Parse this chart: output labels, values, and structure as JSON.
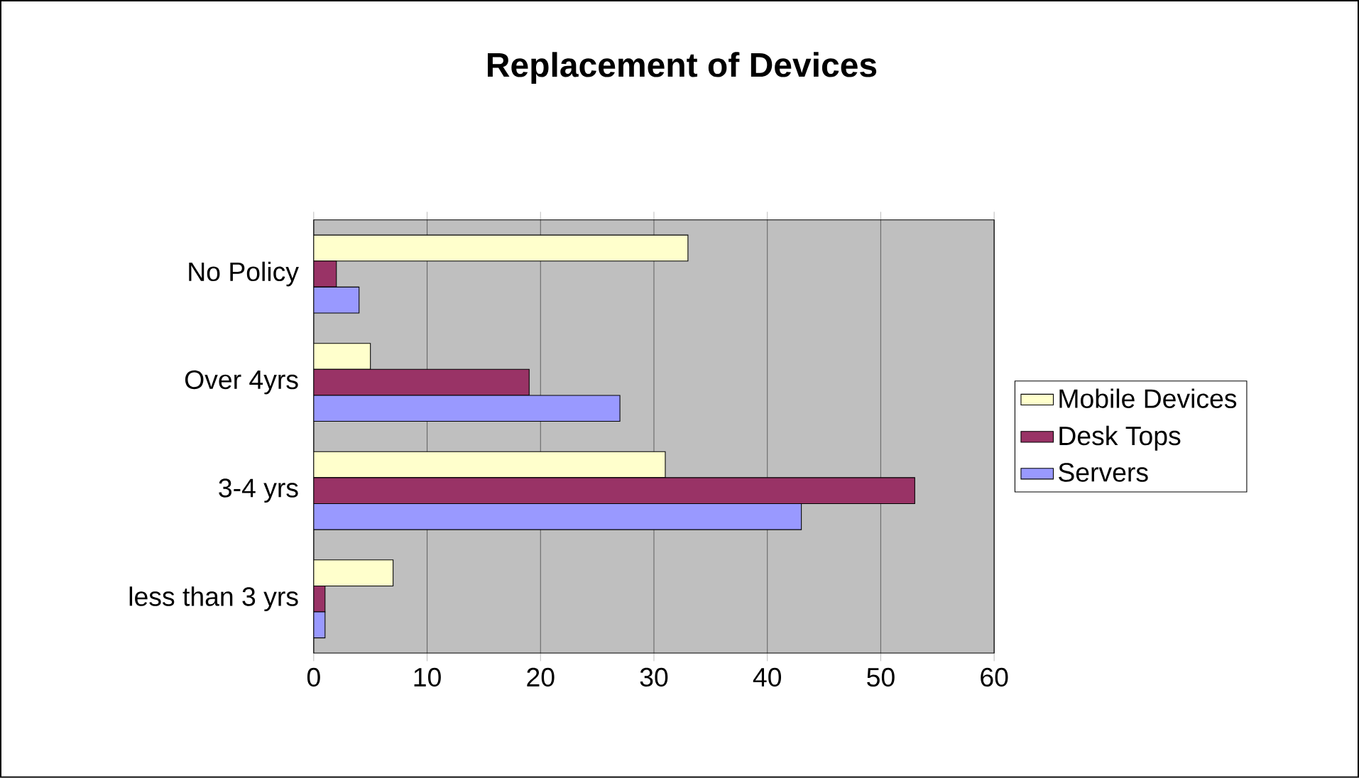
{
  "chart_data": {
    "type": "bar",
    "orientation": "horizontal",
    "title": "Replacement of Devices",
    "categories": [
      "No Policy",
      "Over 4yrs",
      "3-4 yrs",
      "less than 3 yrs"
    ],
    "series": [
      {
        "name": "Mobile Devices",
        "color": "#ffffcc",
        "values": [
          33,
          5,
          31,
          7
        ]
      },
      {
        "name": "Desk Tops",
        "color": "#993366",
        "values": [
          2,
          19,
          53,
          1
        ]
      },
      {
        "name": "Servers",
        "color": "#9999ff",
        "values": [
          4,
          27,
          43,
          1
        ]
      }
    ],
    "xlim": [
      0,
      60
    ],
    "xticks": [
      0,
      10,
      20,
      30,
      40,
      50,
      60
    ],
    "grid": "x",
    "legend": "right"
  }
}
